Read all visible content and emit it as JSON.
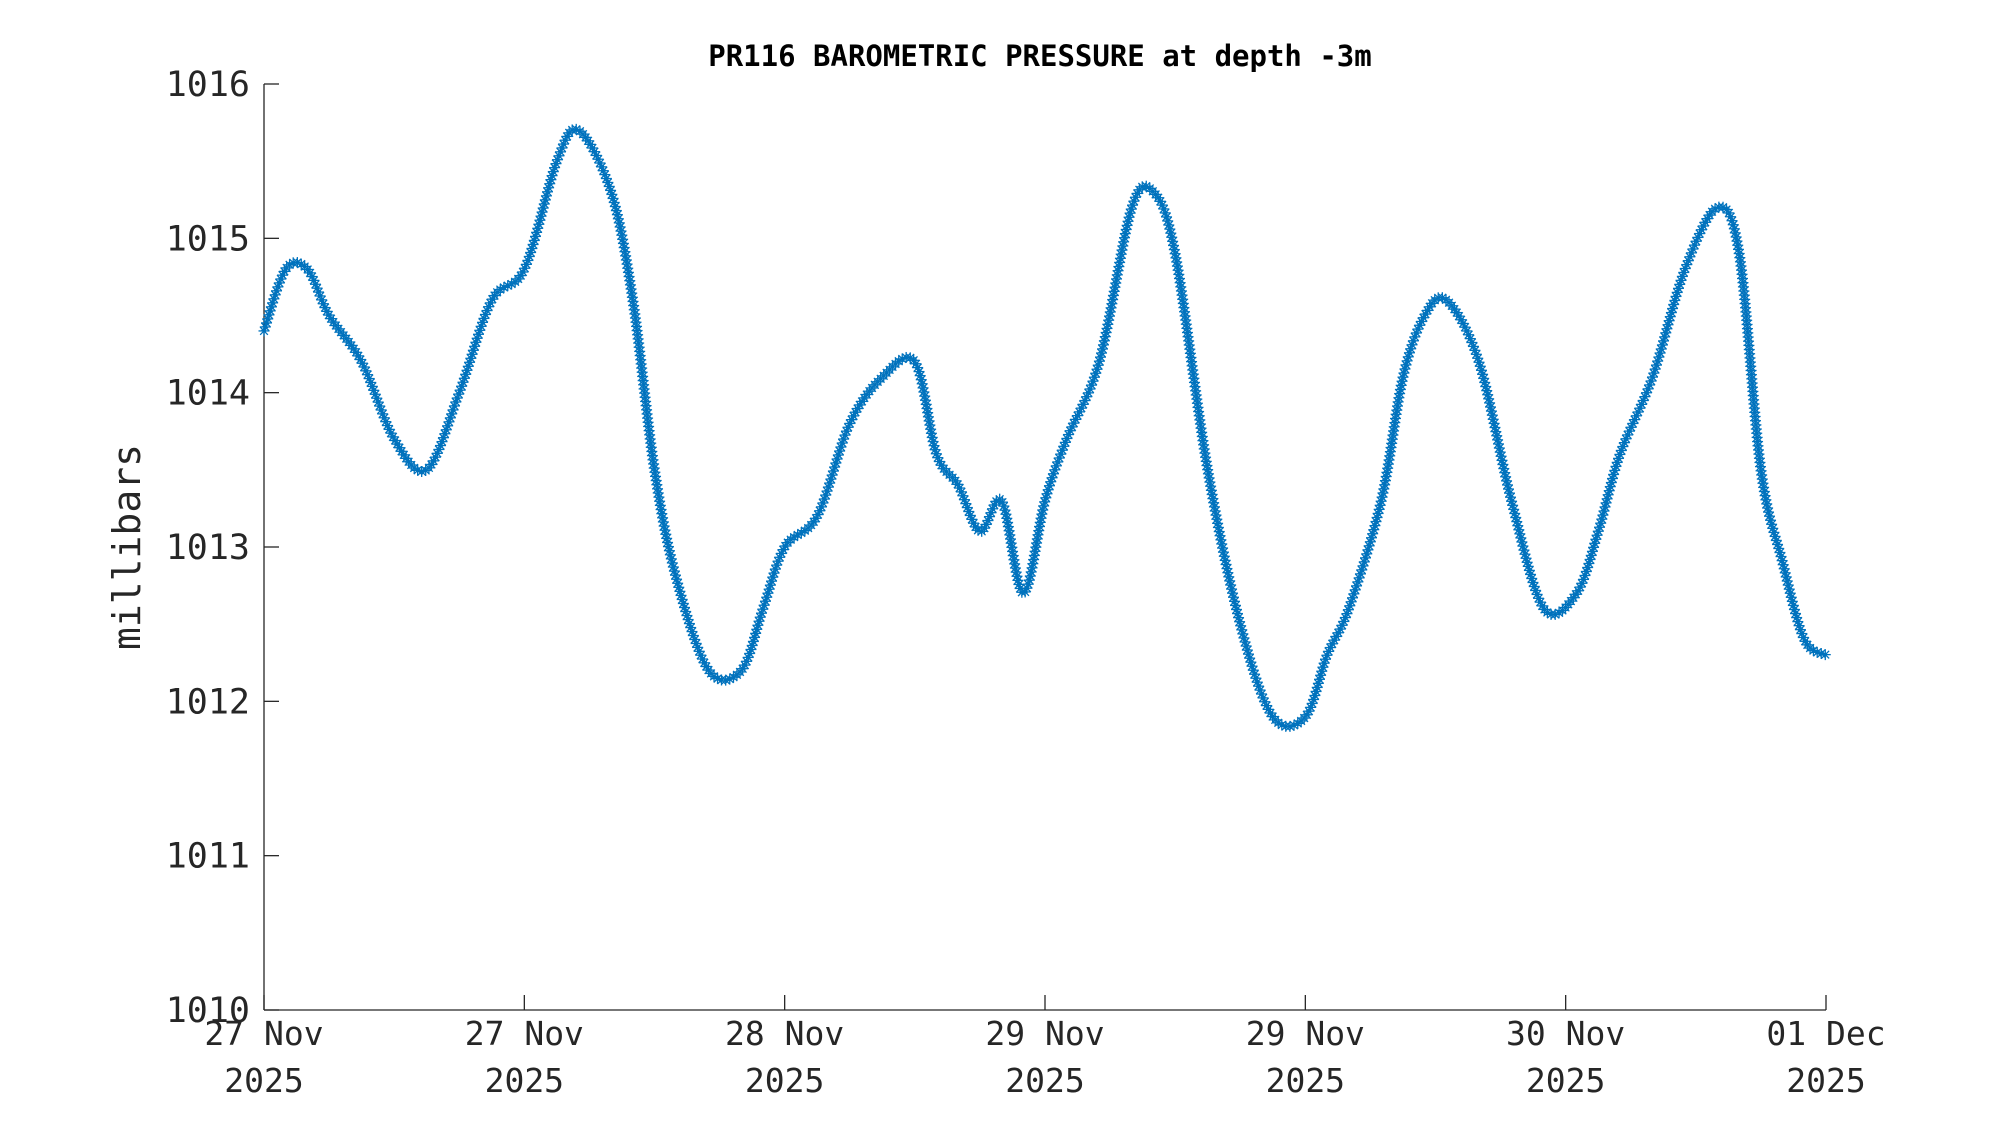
{
  "chart_data": {
    "type": "line",
    "title": "PR116 BAROMETRIC PRESSURE at depth -3m",
    "xlabel": "",
    "ylabel": "millibars",
    "ylim": [
      1010,
      1016
    ],
    "xlim": [
      "2025-11-27 00:00",
      "2025-12-01 00:00"
    ],
    "yticks": [
      "1010",
      "1011",
      "1012",
      "1013",
      "1014",
      "1015",
      "1016"
    ],
    "xticks": [
      {
        "line1": "27 Nov",
        "line2": "2025"
      },
      {
        "line1": "27 Nov",
        "line2": "2025"
      },
      {
        "line1": "28 Nov",
        "line2": "2025"
      },
      {
        "line1": "29 Nov",
        "line2": "2025"
      },
      {
        "line1": "29 Nov",
        "line2": "2025"
      },
      {
        "line1": "30 Nov",
        "line2": "2025"
      },
      {
        "line1": "01 Dec",
        "line2": "2025"
      }
    ],
    "grid": false,
    "legend": "none",
    "color": "#0072BD",
    "marker": "asterisk",
    "line_style": "dash-dot",
    "series": [
      {
        "x": [
          "2025-11-27 00:00",
          "2025-11-27 01:20",
          "2025-11-27 02:40",
          "2025-11-27 04:00",
          "2025-11-27 06:00",
          "2025-11-27 08:00",
          "2025-11-27 10:00",
          "2025-11-27 12:00",
          "2025-11-27 14:00",
          "2025-11-27 16:00",
          "2025-11-27 18:00",
          "2025-11-27 19:20",
          "2025-11-27 21:20",
          "2025-11-27 22:40",
          "2025-11-28 00:00",
          "2025-11-28 01:20",
          "2025-11-28 03:20",
          "2025-11-28 05:20",
          "2025-11-28 06:40",
          "2025-11-28 08:00",
          "2025-11-28 10:00",
          "2025-11-28 12:00",
          "2025-11-28 14:00",
          "2025-11-28 16:00",
          "2025-11-28 17:20",
          "2025-11-28 18:40",
          "2025-11-28 20:00",
          "2025-11-28 21:20",
          "2025-11-28 22:40",
          "2025-11-29 00:00",
          "2025-11-29 01:20",
          "2025-11-29 03:20",
          "2025-11-29 05:20",
          "2025-11-29 06:40",
          "2025-11-29 08:00",
          "2025-11-29 10:00",
          "2025-11-29 12:00",
          "2025-11-29 14:00",
          "2025-11-29 16:00",
          "2025-11-29 17:20",
          "2025-11-29 18:40",
          "2025-11-29 20:40",
          "2025-11-29 22:00",
          "2025-11-29 23:20",
          "2025-11-30 00:40",
          "2025-11-30 02:40",
          "2025-11-30 04:40",
          "2025-11-30 06:40",
          "2025-11-30 08:40",
          "2025-11-30 10:00",
          "2025-11-30 11:20",
          "2025-11-30 13:20",
          "2025-11-30 15:20",
          "2025-11-30 17:20",
          "2025-11-30 18:40",
          "2025-11-30 20:00",
          "2025-11-30 21:20",
          "2025-11-30 22:40",
          "2025-12-01 00:00"
        ],
        "values": [
          1014.4,
          1014.8,
          1014.8,
          1014.5,
          1014.2,
          1013.7,
          1013.5,
          1014.0,
          1014.6,
          1014.8,
          1015.5,
          1015.7,
          1015.3,
          1014.6,
          1013.5,
          1012.8,
          1012.2,
          1012.2,
          1012.6,
          1013.0,
          1013.2,
          1013.8,
          1014.1,
          1014.2,
          1013.6,
          1013.4,
          1013.1,
          1013.3,
          1012.7,
          1013.3,
          1013.7,
          1014.2,
          1015.2,
          1015.3,
          1014.9,
          1013.5,
          1012.5,
          1011.9,
          1011.9,
          1012.3,
          1012.6,
          1013.3,
          1014.1,
          1014.5,
          1014.6,
          1014.2,
          1013.3,
          1012.6,
          1012.7,
          1013.1,
          1013.6,
          1014.1,
          1014.8,
          1015.2,
          1014.9,
          1013.5,
          1012.9,
          1012.4,
          1012.3
        ]
      }
    ]
  }
}
